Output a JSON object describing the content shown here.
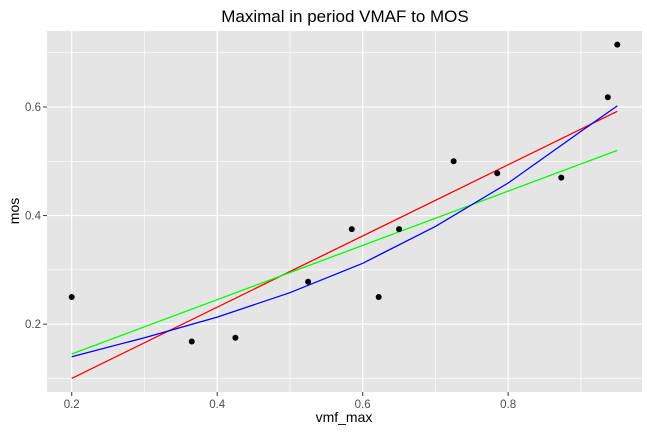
{
  "chart_data": {
    "type": "scatter",
    "title": "Maximal in period VMAF to MOS",
    "xlabel": "vmf_max",
    "ylabel": "mos",
    "xlim": [
      0.166,
      0.984
    ],
    "ylim": [
      0.075,
      0.74
    ],
    "x_ticks": [
      "0.2",
      "0.4",
      "0.6",
      "0.8"
    ],
    "y_ticks": [
      "0.2",
      "0.4",
      "0.6"
    ],
    "grid": true,
    "panel_background": "#e5e5e5",
    "grid_color": "#ffffff",
    "points": [
      {
        "x": 0.2,
        "y": 0.25
      },
      {
        "x": 0.365,
        "y": 0.168
      },
      {
        "x": 0.425,
        "y": 0.175
      },
      {
        "x": 0.525,
        "y": 0.278
      },
      {
        "x": 0.585,
        "y": 0.375
      },
      {
        "x": 0.622,
        "y": 0.25
      },
      {
        "x": 0.65,
        "y": 0.375
      },
      {
        "x": 0.725,
        "y": 0.5
      },
      {
        "x": 0.785,
        "y": 0.478
      },
      {
        "x": 0.873,
        "y": 0.47
      },
      {
        "x": 0.937,
        "y": 0.618
      },
      {
        "x": 0.95,
        "y": 0.715
      }
    ],
    "point_color": "#000000",
    "series": [
      {
        "color": "#ff0000",
        "points": [
          [
            0.2,
            0.1
          ],
          [
            0.95,
            0.592
          ]
        ]
      },
      {
        "color": "#00ff00",
        "points": [
          [
            0.2,
            0.145
          ],
          [
            0.95,
            0.52
          ]
        ]
      },
      {
        "color": "#0000ff",
        "points": [
          [
            0.2,
            0.14
          ],
          [
            0.3,
            0.175
          ],
          [
            0.4,
            0.213
          ],
          [
            0.5,
            0.258
          ],
          [
            0.6,
            0.312
          ],
          [
            0.7,
            0.38
          ],
          [
            0.8,
            0.46
          ],
          [
            0.9,
            0.555
          ],
          [
            0.95,
            0.602
          ]
        ]
      }
    ]
  }
}
